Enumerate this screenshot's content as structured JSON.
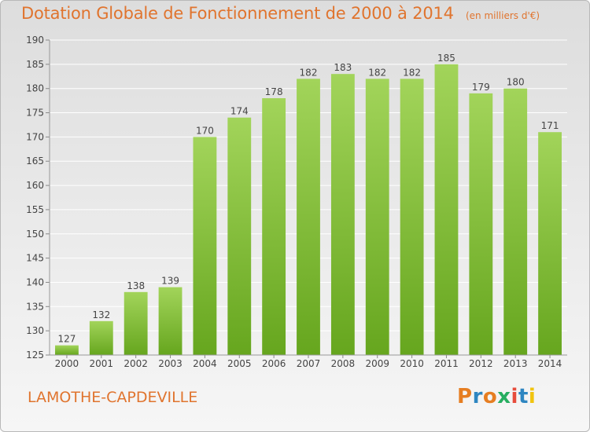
{
  "header": {
    "title": "Dotation Globale de Fonctionnement de 2000 à 2014",
    "unit": "(en milliers d'€)"
  },
  "footer": {
    "commune": "LAMOTHE-CAPDEVILLE",
    "logo": "Proxiti"
  },
  "colors": {
    "title": "#e0742e",
    "bar_light": "#a2d45a",
    "bar_dark": "#66a61e",
    "grid": "#ffffff",
    "axis_text": "#444444",
    "logo_letters": [
      "#e67e22",
      "#2e86c1",
      "#e67e22",
      "#27ae60",
      "#e74c3c",
      "#2e86c1",
      "#f1c40f"
    ]
  },
  "chart_data": {
    "type": "bar",
    "title": "Dotation Globale de Fonctionnement de 2000 à 2014",
    "subtitle": "(en milliers d'€)",
    "categories": [
      "2000",
      "2001",
      "2002",
      "2003",
      "2004",
      "2005",
      "2006",
      "2007",
      "2008",
      "2009",
      "2010",
      "2011",
      "2012",
      "2013",
      "2014"
    ],
    "values": [
      127,
      132,
      138,
      139,
      170,
      174,
      178,
      182,
      183,
      182,
      182,
      185,
      179,
      180,
      171
    ],
    "ylim": [
      125,
      190
    ],
    "yticks": [
      125,
      130,
      135,
      140,
      145,
      150,
      155,
      160,
      165,
      170,
      175,
      180,
      185,
      190
    ],
    "grid": true,
    "data_labels": true
  }
}
